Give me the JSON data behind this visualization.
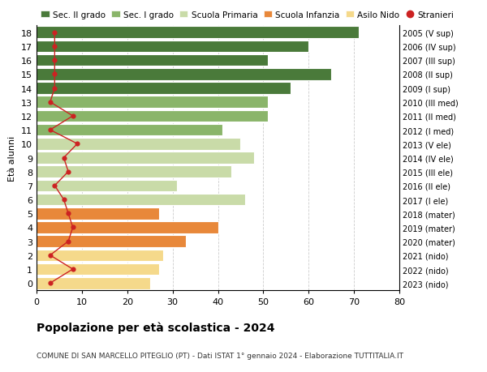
{
  "ages": [
    0,
    1,
    2,
    3,
    4,
    5,
    6,
    7,
    8,
    9,
    10,
    11,
    12,
    13,
    14,
    15,
    16,
    17,
    18
  ],
  "bar_values": [
    25,
    27,
    28,
    33,
    40,
    27,
    46,
    31,
    43,
    48,
    45,
    41,
    51,
    51,
    56,
    65,
    51,
    60,
    71
  ],
  "bar_colors": [
    "#f5d98b",
    "#f5d98b",
    "#f5d98b",
    "#e8883a",
    "#e8883a",
    "#e8883a",
    "#c9dba8",
    "#c9dba8",
    "#c9dba8",
    "#c9dba8",
    "#c9dba8",
    "#8ab56a",
    "#8ab56a",
    "#8ab56a",
    "#4a7a3a",
    "#4a7a3a",
    "#4a7a3a",
    "#4a7a3a",
    "#4a7a3a"
  ],
  "stranieri": [
    3,
    8,
    3,
    7,
    8,
    7,
    6,
    4,
    7,
    6,
    9,
    3,
    8,
    3,
    4,
    4,
    4,
    4,
    4
  ],
  "right_labels": [
    "2023 (nido)",
    "2022 (nido)",
    "2021 (nido)",
    "2020 (mater)",
    "2019 (mater)",
    "2018 (mater)",
    "2017 (I ele)",
    "2016 (II ele)",
    "2015 (III ele)",
    "2014 (IV ele)",
    "2013 (V ele)",
    "2012 (I med)",
    "2011 (II med)",
    "2010 (III med)",
    "2009 (I sup)",
    "2008 (II sup)",
    "2007 (III sup)",
    "2006 (IV sup)",
    "2005 (V sup)"
  ],
  "legend_labels": [
    "Sec. II grado",
    "Sec. I grado",
    "Scuola Primaria",
    "Scuola Infanzia",
    "Asilo Nido",
    "Stranieri"
  ],
  "legend_colors": [
    "#4a7a3a",
    "#8ab56a",
    "#c9dba8",
    "#e8883a",
    "#f5d98b",
    "#cc2222"
  ],
  "title": "Popolazione per età scolastica - 2024",
  "subtitle": "COMUNE DI SAN MARCELLO PITEGLIO (PT) - Dati ISTAT 1° gennaio 2024 - Elaborazione TUTTITALIA.IT",
  "ylabel": "Età alunni",
  "xlim": [
    0,
    80
  ],
  "xticks": [
    0,
    10,
    20,
    30,
    40,
    50,
    60,
    70,
    80
  ],
  "background_color": "#ffffff",
  "grid_color": "#cccccc"
}
